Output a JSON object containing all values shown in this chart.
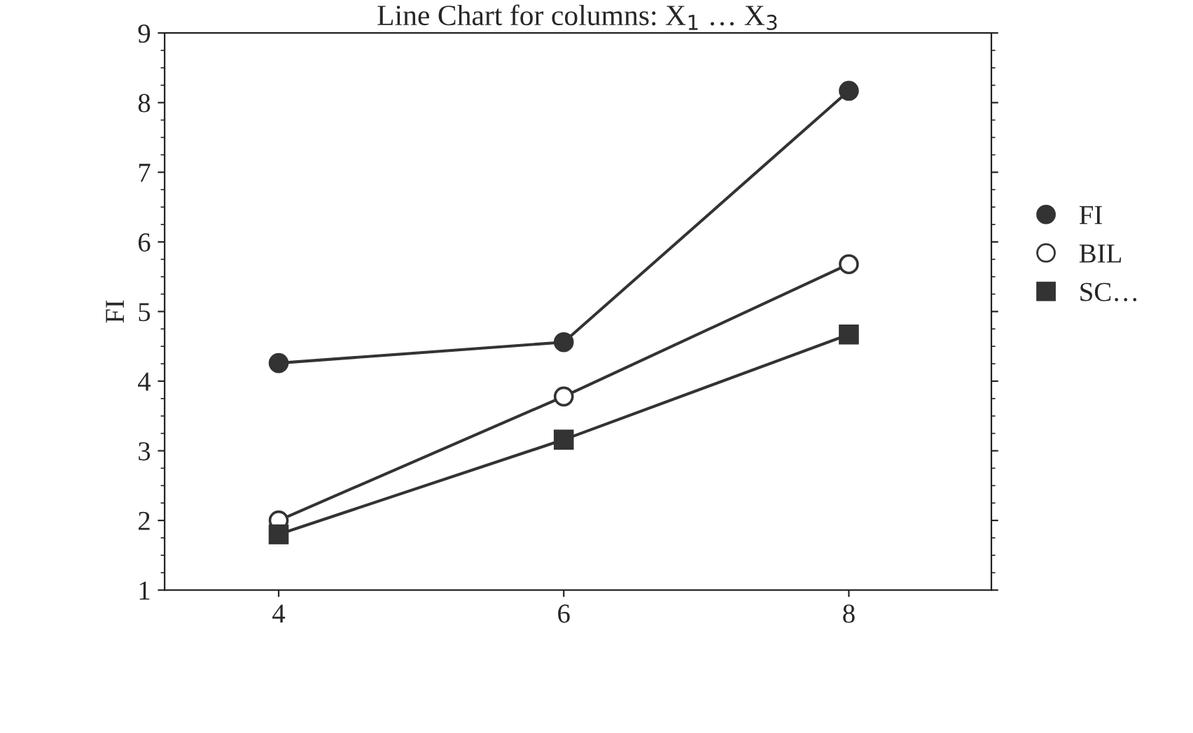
{
  "chart_data": {
    "type": "line",
    "title": "Line Chart for columns: X$_{1}$ … X$_{3}$",
    "ylabel": "FI",
    "x": [
      4,
      6,
      8
    ],
    "series": [
      {
        "name": "FI",
        "color": "#333333",
        "marker": "circle",
        "values": [
          4.26,
          4.56,
          8.17
        ]
      },
      {
        "name": "BIL",
        "color": "#333333",
        "marker": "circle_open",
        "values": [
          2.0,
          3.78,
          5.68
        ]
      },
      {
        "name": "SC…",
        "color": "#333333",
        "marker": "square",
        "values": [
          1.8,
          3.16,
          4.67
        ]
      }
    ],
    "xlim": [
      3.2,
      9
    ],
    "xticks": [
      4,
      6,
      8
    ],
    "ylim": [
      1,
      9
    ],
    "yticks": [
      1,
      2,
      3,
      4,
      5,
      6,
      7,
      8,
      9
    ],
    "grid": false,
    "legend": "right",
    "line_style": "solid"
  }
}
